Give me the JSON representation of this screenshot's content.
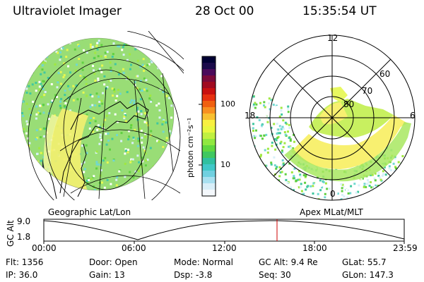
{
  "header": {
    "title": "Ultraviolet Imager",
    "date": "28 Oct 00",
    "time": "15:35:54 UT"
  },
  "colorbar": {
    "unit": "photon cm⁻²s⁻¹",
    "ticks": [
      "100",
      "10"
    ],
    "colors": [
      "#000033",
      "#1a0a4a",
      "#4a0a5a",
      "#7a0a3a",
      "#a00a20",
      "#c81010",
      "#e63010",
      "#f06010",
      "#f89020",
      "#f8c030",
      "#f8f040",
      "#e8f840",
      "#c0f040",
      "#90e840",
      "#60d840",
      "#40c860",
      "#30c0a0",
      "#40c8c8",
      "#70d0e0",
      "#a8e0f0",
      "#d8eef8",
      "#f4f8fc"
    ]
  },
  "panels": {
    "left_label": "Geographic Lat/Lon",
    "right_label": "Apex MLat/MLT"
  },
  "polar": {
    "mlt_labels": {
      "top": "12",
      "left": "18",
      "right": "6",
      "bottom": "0"
    },
    "lat_labels": [
      "60",
      "70",
      "80"
    ]
  },
  "altitude_plot": {
    "axis_title": "GC Alt",
    "y_ticks": [
      "9.0",
      "1.8"
    ],
    "x_ticks": [
      "00:00",
      "06:00",
      "12:00",
      "18:00",
      "23:59"
    ],
    "current_time_marker_color": "#cc0000"
  },
  "stats": {
    "flt": "Flt:  1356",
    "ip": "IP:  36.0",
    "door": "Door:  Open",
    "gain": "Gain:  13",
    "mode": "Mode:  Normal",
    "dsp": "Dsp:     -3.8",
    "gcalt": "GC Alt:  9.4 Re",
    "seq": "Seq:  30",
    "glat": "GLat:    55.7",
    "glon": "GLon:  147.3"
  }
}
